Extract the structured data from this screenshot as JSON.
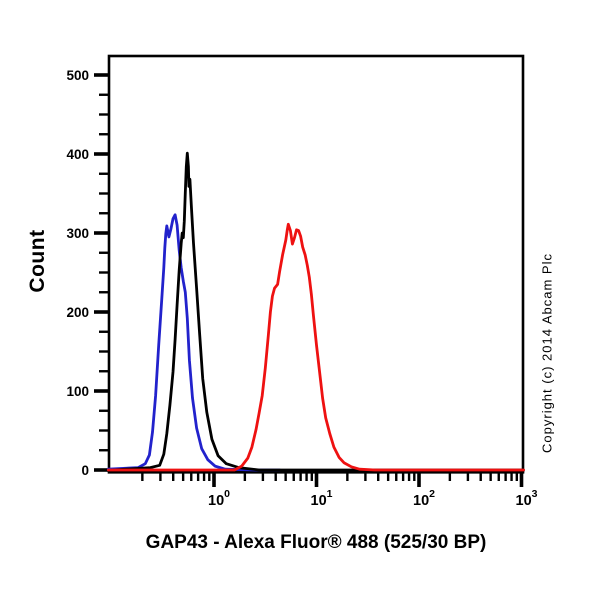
{
  "chart_data": {
    "type": "line",
    "subtype": "flow-cytometry-histogram-overlay",
    "title": "GAP43 - Alexa Fluor® 488 (525/30 BP)",
    "xlabel": "GAP43 - Alexa Fluor® 488 (525/30 BP)",
    "ylabel": "Count",
    "x_scale": "log10",
    "x_tick_exponents": [
      0,
      1,
      2,
      3
    ],
    "x_tick_labels": [
      "10^0",
      "10^1",
      "10^2",
      "10^3"
    ],
    "xlim_log10": [
      -1.03,
      3.02
    ],
    "ylim": [
      0,
      500
    ],
    "y_ticks": [
      0,
      100,
      200,
      300,
      400,
      500
    ],
    "y_minor_tick_step": 25,
    "grid": false,
    "legend_position": "none",
    "background_color": "#ffffff",
    "axis_color": "#000000",
    "series": [
      {
        "name": "blue-histogram",
        "color": "#2222cc",
        "peak_count": 323,
        "points_log10x_count": [
          [
            -1.03,
            1
          ],
          [
            -0.74,
            3
          ],
          [
            -0.67,
            8
          ],
          [
            -0.63,
            19
          ],
          [
            -0.6,
            48
          ],
          [
            -0.57,
            94
          ],
          [
            -0.54,
            158
          ],
          [
            -0.51,
            215
          ],
          [
            -0.49,
            256
          ],
          [
            -0.48,
            281
          ],
          [
            -0.47,
            299
          ],
          [
            -0.46,
            309
          ],
          [
            -0.44,
            295
          ],
          [
            -0.42,
            305
          ],
          [
            -0.4,
            318
          ],
          [
            -0.38,
            323
          ],
          [
            -0.36,
            310
          ],
          [
            -0.34,
            278
          ],
          [
            -0.32,
            256
          ],
          [
            -0.3,
            239
          ],
          [
            -0.28,
            225
          ],
          [
            -0.26,
            192
          ],
          [
            -0.24,
            139
          ],
          [
            -0.21,
            91
          ],
          [
            -0.17,
            53
          ],
          [
            -0.12,
            27
          ],
          [
            -0.06,
            13
          ],
          [
            0.01,
            5
          ],
          [
            0.11,
            1
          ],
          [
            0.39,
            0
          ],
          [
            0.64,
            0
          ]
        ]
      },
      {
        "name": "black-histogram",
        "color": "#000000",
        "peak_count": 401,
        "points_log10x_count": [
          [
            -0.98,
            0
          ],
          [
            -0.62,
            3
          ],
          [
            -0.53,
            6
          ],
          [
            -0.49,
            20
          ],
          [
            -0.46,
            46
          ],
          [
            -0.43,
            82
          ],
          [
            -0.4,
            124
          ],
          [
            -0.38,
            165
          ],
          [
            -0.36,
            209
          ],
          [
            -0.34,
            253
          ],
          [
            -0.32,
            287
          ],
          [
            -0.31,
            300
          ],
          [
            -0.3,
            294
          ],
          [
            -0.29,
            315
          ],
          [
            -0.28,
            351
          ],
          [
            -0.27,
            384
          ],
          [
            -0.26,
            401
          ],
          [
            -0.25,
            384
          ],
          [
            -0.245,
            359
          ],
          [
            -0.235,
            368
          ],
          [
            -0.22,
            333
          ],
          [
            -0.2,
            287
          ],
          [
            -0.17,
            230
          ],
          [
            -0.14,
            171
          ],
          [
            -0.11,
            116
          ],
          [
            -0.07,
            73
          ],
          [
            -0.02,
            39
          ],
          [
            0.04,
            18
          ],
          [
            0.12,
            8
          ],
          [
            0.24,
            3
          ],
          [
            0.44,
            0
          ],
          [
            3.02,
            0
          ]
        ]
      },
      {
        "name": "red-histogram",
        "color": "#ee1111",
        "peak_count": 311,
        "points_log10x_count": [
          [
            -1.03,
            0
          ],
          [
            0.2,
            0
          ],
          [
            0.27,
            5
          ],
          [
            0.33,
            15
          ],
          [
            0.37,
            29
          ],
          [
            0.41,
            51
          ],
          [
            0.44,
            72
          ],
          [
            0.47,
            94
          ],
          [
            0.5,
            129
          ],
          [
            0.53,
            170
          ],
          [
            0.55,
            200
          ],
          [
            0.57,
            220
          ],
          [
            0.59,
            230
          ],
          [
            0.62,
            235
          ],
          [
            0.64,
            251
          ],
          [
            0.67,
            273
          ],
          [
            0.7,
            291
          ],
          [
            0.715,
            304
          ],
          [
            0.725,
            311
          ],
          [
            0.745,
            303
          ],
          [
            0.765,
            286
          ],
          [
            0.785,
            294
          ],
          [
            0.805,
            304
          ],
          [
            0.825,
            303
          ],
          [
            0.845,
            296
          ],
          [
            0.865,
            282
          ],
          [
            0.89,
            272
          ],
          [
            0.91,
            259
          ],
          [
            0.93,
            244
          ],
          [
            0.95,
            222
          ],
          [
            0.97,
            196
          ],
          [
            1.0,
            158
          ],
          [
            1.03,
            124
          ],
          [
            1.06,
            91
          ],
          [
            1.09,
            66
          ],
          [
            1.13,
            46
          ],
          [
            1.17,
            29
          ],
          [
            1.22,
            16
          ],
          [
            1.27,
            9
          ],
          [
            1.34,
            4
          ],
          [
            1.42,
            1
          ],
          [
            1.57,
            0
          ],
          [
            3.02,
            0
          ]
        ]
      }
    ],
    "annotations": {
      "copyright": "Copyright (c) 2014 Abcam Plc"
    }
  }
}
